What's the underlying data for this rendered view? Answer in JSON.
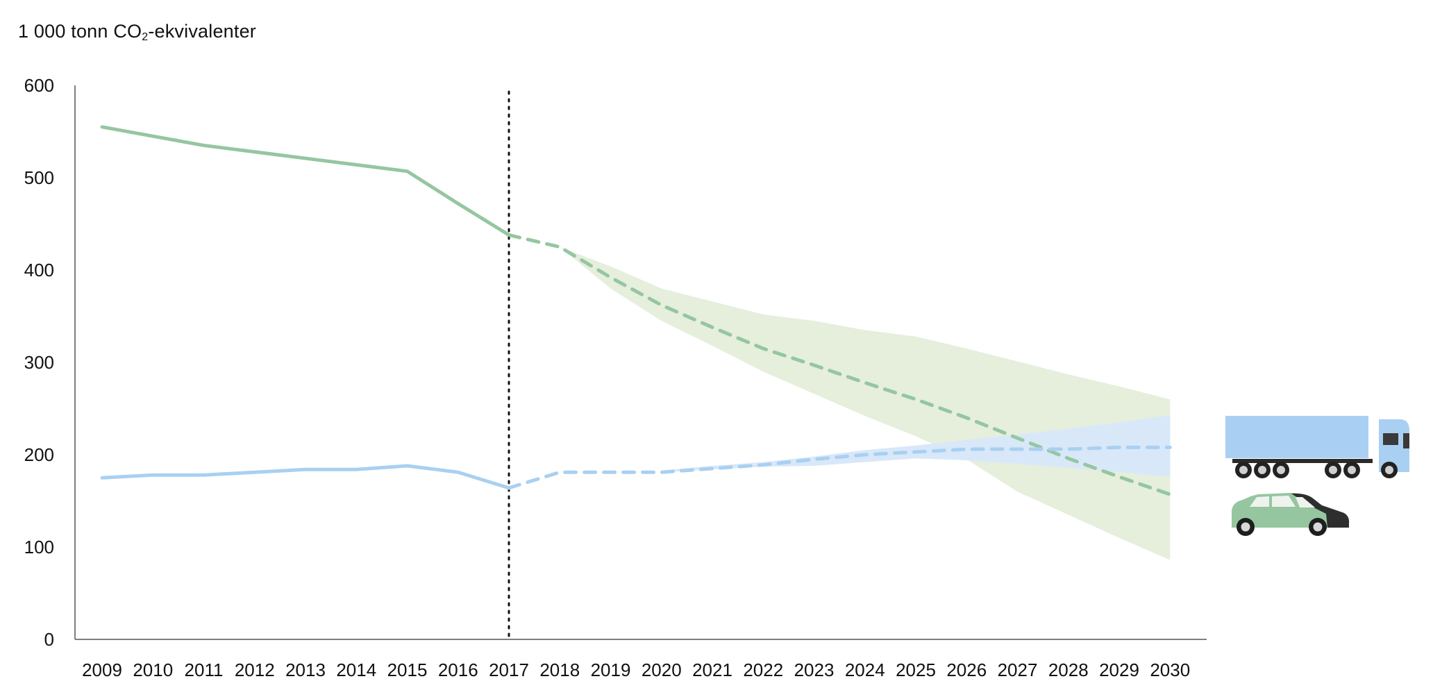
{
  "chart_data": {
    "type": "line",
    "title": "",
    "ylabel": {
      "prefix": "1 000 tonn CO",
      "subscript": "2",
      "suffix": "-ekvivalenter"
    },
    "xlabel": "",
    "ylim": [
      0,
      600
    ],
    "yticks": [
      "0",
      "100",
      "200",
      "300",
      "400",
      "500",
      "600"
    ],
    "categories": [
      "2009",
      "2010",
      "2011",
      "2012",
      "2013",
      "2014",
      "2015",
      "2016",
      "2017",
      "2018",
      "2019",
      "2020",
      "2021",
      "2022",
      "2023",
      "2024",
      "2025",
      "2026",
      "2027",
      "2028",
      "2029",
      "2030"
    ],
    "divider_year": "2017",
    "grid": false,
    "legend": "icons at right end: truck (blue series), car (green series)",
    "series": [
      {
        "name": "car",
        "color": "#95c6a0",
        "historical": {
          "x": [
            "2009",
            "2010",
            "2011",
            "2012",
            "2013",
            "2014",
            "2015",
            "2016",
            "2017"
          ],
          "values": [
            555,
            545,
            535,
            528,
            521,
            514,
            507,
            472,
            438
          ]
        },
        "projection": {
          "x": [
            "2017",
            "2018",
            "2019",
            "2020",
            "2021",
            "2022",
            "2023",
            "2024",
            "2025",
            "2026",
            "2027",
            "2028",
            "2029",
            "2030"
          ],
          "values": [
            438,
            425,
            392,
            362,
            338,
            315,
            297,
            278,
            260,
            240,
            218,
            196,
            176,
            157
          ]
        },
        "band_color": "#e5efdc",
        "band": {
          "x": [
            "2018",
            "2019",
            "2020",
            "2021",
            "2022",
            "2023",
            "2024",
            "2025",
            "2026",
            "2027",
            "2028",
            "2029",
            "2030"
          ],
          "upper": [
            425,
            404,
            380,
            366,
            352,
            345,
            335,
            328,
            315,
            301,
            287,
            274,
            260
          ],
          "lower": [
            425,
            380,
            345,
            318,
            290,
            266,
            242,
            220,
            195,
            160,
            135,
            110,
            86
          ]
        }
      },
      {
        "name": "truck",
        "color": "#a9d0f2",
        "historical": {
          "x": [
            "2009",
            "2010",
            "2011",
            "2012",
            "2013",
            "2014",
            "2015",
            "2016",
            "2017"
          ],
          "values": [
            175,
            178,
            178,
            181,
            184,
            184,
            188,
            181,
            164
          ]
        },
        "projection": {
          "x": [
            "2017",
            "2018",
            "2019",
            "2020",
            "2021",
            "2022",
            "2023",
            "2024",
            "2025",
            "2026",
            "2027",
            "2028",
            "2029",
            "2030"
          ],
          "values": [
            164,
            181,
            181,
            181,
            185,
            189,
            195,
            200,
            203,
            206,
            206,
            206,
            208,
            208
          ]
        },
        "band_color": "#d8e8f9",
        "band": {
          "x": [
            "2020",
            "2021",
            "2022",
            "2023",
            "2024",
            "2025",
            "2026",
            "2027",
            "2028",
            "2029",
            "2030"
          ],
          "upper": [
            183,
            188,
            192,
            198,
            205,
            210,
            216,
            222,
            228,
            235,
            243
          ],
          "lower": [
            181,
            184,
            187,
            188,
            192,
            196,
            194,
            190,
            186,
            181,
            176
          ]
        }
      }
    ]
  }
}
